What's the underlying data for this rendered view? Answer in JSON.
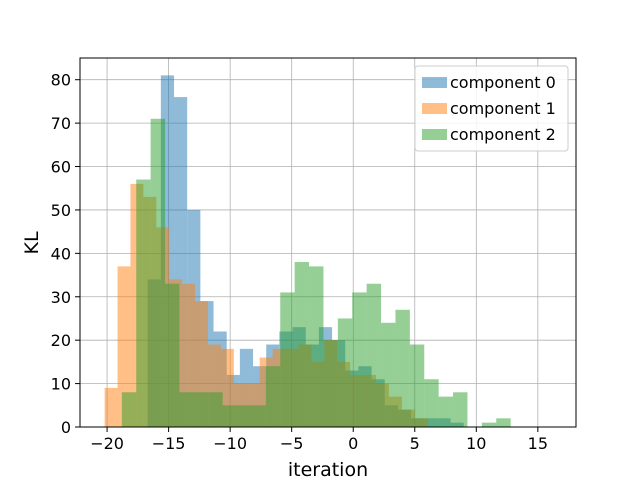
{
  "chart_data": {
    "type": "histogram",
    "xlabel": "iteration",
    "ylabel": "KL",
    "xlim": [
      -22.2,
      18.1
    ],
    "ylim": [
      0,
      85
    ],
    "xticks": [
      -20,
      -15,
      -10,
      -5,
      0,
      5,
      10,
      15
    ],
    "yticks": [
      0,
      10,
      20,
      30,
      40,
      50,
      60,
      70,
      80
    ],
    "grid": true,
    "legend_position": "top-right",
    "series": [
      {
        "name": "component 0",
        "color": "#1f77b4",
        "alpha": 0.5,
        "bin_start": -16.7,
        "bin_width": 1.07,
        "values": [
          34,
          81,
          76,
          50,
          29,
          22,
          12,
          18,
          14,
          19,
          22,
          23,
          19,
          23,
          20,
          13,
          14,
          11,
          5,
          4,
          2,
          2,
          2,
          1
        ]
      },
      {
        "name": "component 1",
        "color": "#ff7f0e",
        "alpha": 0.5,
        "bin_start": -20.2,
        "bin_width": 1.05,
        "values": [
          9,
          37,
          56,
          53,
          46,
          34,
          33,
          29,
          19,
          18,
          10,
          10,
          16,
          18,
          18,
          19,
          15,
          20,
          15,
          12,
          12,
          10,
          7,
          4,
          2
        ]
      },
      {
        "name": "component 2",
        "color": "#2ca02c",
        "alpha": 0.5,
        "bin_start": -18.8,
        "bin_width": 1.17,
        "values": [
          8,
          57,
          71,
          33,
          8,
          8,
          8,
          5,
          5,
          5,
          14,
          31,
          38,
          37,
          20,
          25,
          31,
          33,
          24,
          27,
          19,
          11,
          7,
          8,
          0,
          1,
          2
        ]
      }
    ]
  }
}
